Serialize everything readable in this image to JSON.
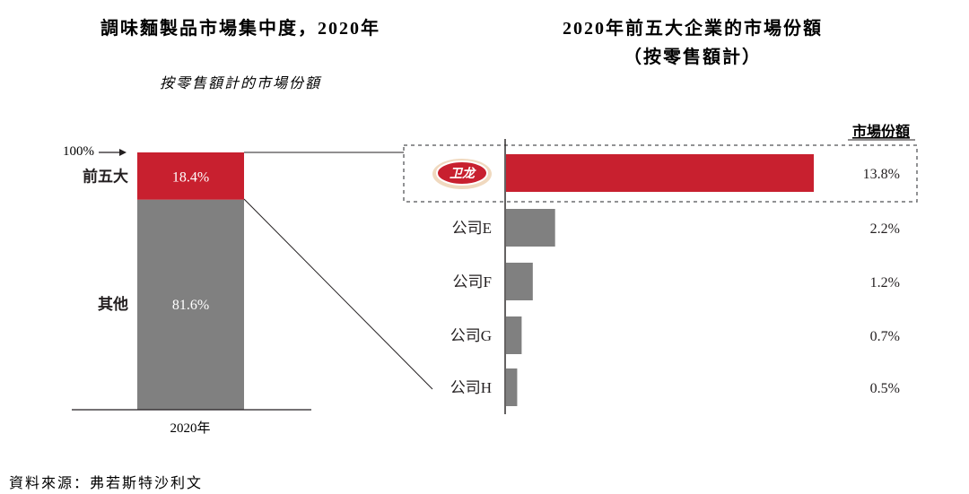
{
  "chart_data": [
    {
      "type": "bar",
      "title": "調味麵製品市場集中度，2020年",
      "subtitle": "按零售額計的市場份額",
      "top_marker": "100%",
      "x_label": "2020年",
      "stacked": true,
      "segments": [
        {
          "label": "前五大",
          "value": 18.4,
          "value_text": "18.4%",
          "color": "#c8202f"
        },
        {
          "label": "其他",
          "value": 81.6,
          "value_text": "81.6%",
          "color": "#808080"
        }
      ]
    },
    {
      "type": "bar",
      "orientation": "horizontal",
      "title": "2020年前五大企業的市場份額",
      "subtitle": "（按零售額計）",
      "column_header": "市場份額",
      "xlim": [
        0,
        13.8
      ],
      "categories": [
        {
          "name": "卫龙",
          "is_logo": true,
          "value": 13.8,
          "value_text": "13.8%",
          "color": "#c8202f",
          "highlighted": true
        },
        {
          "name": "公司E",
          "value": 2.2,
          "value_text": "2.2%",
          "color": "#808080"
        },
        {
          "name": "公司F",
          "value": 1.2,
          "value_text": "1.2%",
          "color": "#808080"
        },
        {
          "name": "公司G",
          "value": 0.7,
          "value_text": "0.7%",
          "color": "#808080"
        },
        {
          "name": "公司H",
          "value": 0.5,
          "value_text": "0.5%",
          "color": "#808080"
        }
      ]
    }
  ],
  "source": "資料來源：弗若斯特沙利文",
  "colors": {
    "accent_red": "#c8202f",
    "gray": "#808080",
    "dashed_border": "#6d6e71"
  }
}
